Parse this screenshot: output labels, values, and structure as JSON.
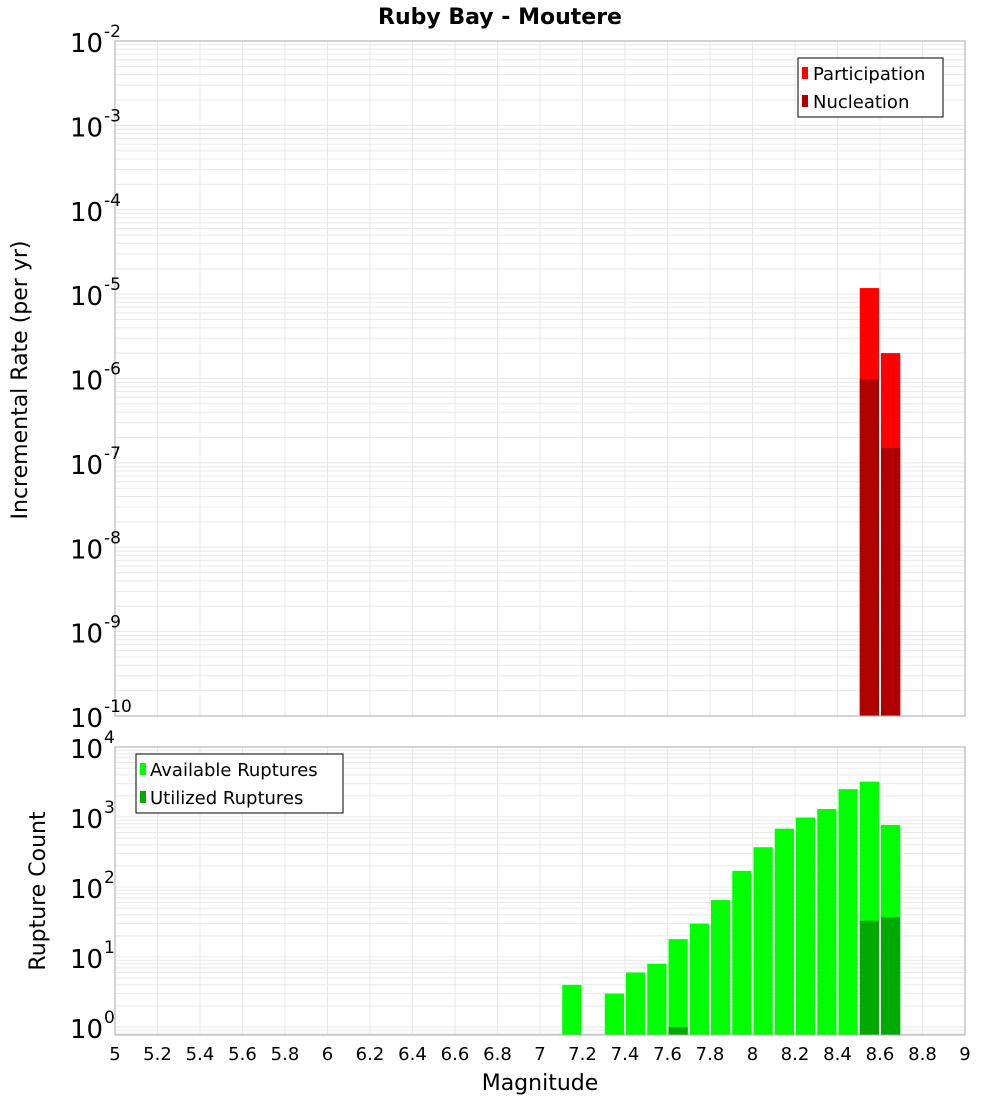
{
  "title": "Ruby Bay - Moutere",
  "xlabel": "Magnitude",
  "colors": {
    "participation": "#FF0000",
    "nucleation": "#B00000",
    "available": "#00FF00",
    "utilized": "#00AA00",
    "grid": "#E8E8E8",
    "frame": "#AAAAAA"
  },
  "x_ticks": [
    "5",
    "5.2",
    "5.4",
    "5.6",
    "5.8",
    "6",
    "6.2",
    "6.4",
    "6.6",
    "6.8",
    "7",
    "7.2",
    "7.4",
    "7.6",
    "7.8",
    "8",
    "8.2",
    "8.4",
    "8.6",
    "8.8",
    "9"
  ],
  "chart_data": [
    {
      "type": "bar",
      "title": "Ruby Bay - Moutere",
      "xlabel": "Magnitude",
      "ylabel": "Incremental Rate (per yr)",
      "yscale": "log",
      "xlim": [
        5,
        9
      ],
      "ylim": [
        1e-10,
        0.01
      ],
      "y_ticks": [
        "10^-2",
        "10^-3",
        "10^-4",
        "10^-5",
        "10^-6",
        "10^-7",
        "10^-8",
        "10^-9",
        "10^-10"
      ],
      "bin_width": 0.1,
      "legend": [
        "Participation",
        "Nucleation"
      ],
      "legend_position": "upper right",
      "grid": true,
      "x": [
        8.5,
        8.6
      ],
      "series": [
        {
          "name": "Participation",
          "color": "#FF0000",
          "values": [
            1.18e-05,
            2e-06
          ]
        },
        {
          "name": "Nucleation",
          "color": "#B00000",
          "values": [
            9.8e-07,
            1.5e-07
          ]
        }
      ]
    },
    {
      "type": "bar",
      "xlabel": "Magnitude",
      "ylabel": "Rupture Count",
      "yscale": "log",
      "xlim": [
        5,
        9
      ],
      "ylim": [
        0.8,
        10000.0
      ],
      "y_ticks": [
        "10^0",
        "10^1",
        "10^2",
        "10^3",
        "10^4"
      ],
      "bin_width": 0.1,
      "legend": [
        "Available Ruptures",
        "Utilized Ruptures"
      ],
      "legend_position": "upper left",
      "grid": true,
      "x": [
        7.1,
        7.3,
        7.4,
        7.5,
        7.6,
        7.7,
        7.8,
        7.9,
        8.0,
        8.1,
        8.2,
        8.3,
        8.4,
        8.5,
        8.6
      ],
      "series": [
        {
          "name": "Available Ruptures",
          "color": "#00FF00",
          "values": [
            4,
            3,
            6,
            8,
            18,
            30,
            65,
            170,
            370,
            680,
            980,
            1300,
            2500,
            3200,
            770
          ]
        },
        {
          "name": "Utilized Ruptures",
          "color": "#00AA00",
          "values": [
            0,
            0,
            0,
            0,
            1,
            0,
            0,
            0,
            0,
            0,
            0,
            0,
            0,
            33,
            37
          ]
        }
      ]
    }
  ]
}
